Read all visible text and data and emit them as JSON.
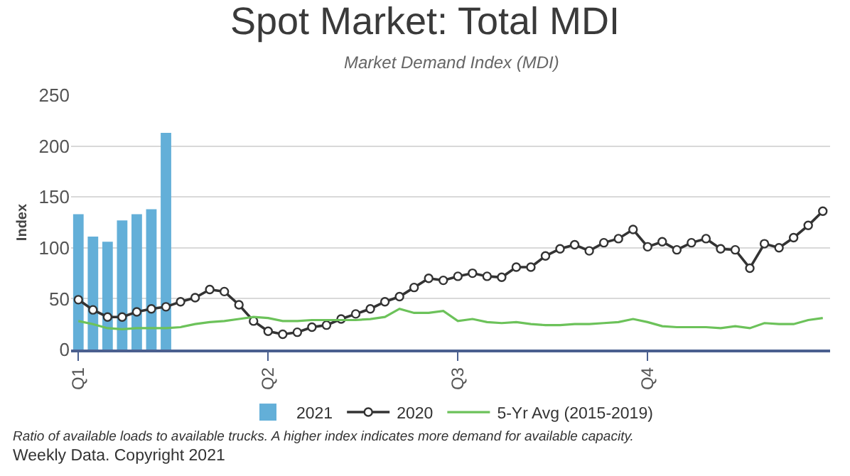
{
  "chart_data": {
    "type": "line",
    "title": "Spot Market: Total MDI",
    "subtitle": "Market Demand Index (MDI)",
    "ylabel": "Index",
    "categories": [
      "Q1",
      null,
      null,
      null,
      null,
      null,
      null,
      null,
      null,
      null,
      null,
      null,
      null,
      "Q2",
      null,
      null,
      null,
      null,
      null,
      null,
      null,
      null,
      null,
      null,
      null,
      null,
      "Q3",
      null,
      null,
      null,
      null,
      null,
      null,
      null,
      null,
      null,
      null,
      null,
      null,
      "Q4",
      null,
      null,
      null,
      null,
      null,
      null,
      null,
      null,
      null,
      null,
      null,
      null
    ],
    "series": [
      {
        "name": "2021",
        "type": "bar",
        "color": "#63afd8",
        "values": [
          133,
          111,
          106,
          127,
          133,
          138,
          213,
          null,
          null,
          null,
          null,
          null,
          null,
          null,
          null,
          null,
          null,
          null,
          null,
          null,
          null,
          null,
          null,
          null,
          null,
          null,
          null,
          null,
          null,
          null,
          null,
          null,
          null,
          null,
          null,
          null,
          null,
          null,
          null,
          null,
          null,
          null,
          null,
          null,
          null,
          null,
          null,
          null,
          null,
          null,
          null,
          null
        ]
      },
      {
        "name": "2020",
        "type": "line",
        "color": "#333333",
        "marker": "circle",
        "values": [
          49,
          39,
          32,
          32,
          37,
          40,
          42,
          47,
          51,
          59,
          57,
          44,
          28,
          18,
          15,
          17,
          22,
          24,
          30,
          35,
          40,
          47,
          52,
          61,
          70,
          68,
          72,
          75,
          72,
          71,
          81,
          81,
          92,
          99,
          103,
          97,
          105,
          109,
          118,
          101,
          106,
          98,
          105,
          109,
          99,
          98,
          80,
          104,
          100,
          110,
          122,
          136
        ]
      },
      {
        "name": "5-Yr Avg (2015-2019)",
        "color": "#6cc25a",
        "marker": "none",
        "values": [
          28,
          25,
          21,
          20,
          21,
          21,
          21,
          22,
          25,
          27,
          28,
          30,
          32,
          31,
          28,
          28,
          29,
          29,
          29,
          29,
          30,
          32,
          40,
          36,
          36,
          38,
          28,
          30,
          27,
          26,
          27,
          25,
          24,
          24,
          25,
          25,
          26,
          27,
          30,
          27,
          23,
          22,
          22,
          22,
          21,
          23,
          21,
          26,
          25,
          25,
          29,
          31
        ]
      }
    ],
    "ylim": [
      0,
      250
    ],
    "yticks": [
      0,
      50,
      100,
      150,
      200,
      250
    ],
    "grid": "y",
    "legend": "bottom",
    "line_style": "solid",
    "annotations": [
      "Ratio of available loads to available trucks. A higher index indicates more demand for available capacity.",
      "Weekly Data. Copyright 2021"
    ]
  }
}
